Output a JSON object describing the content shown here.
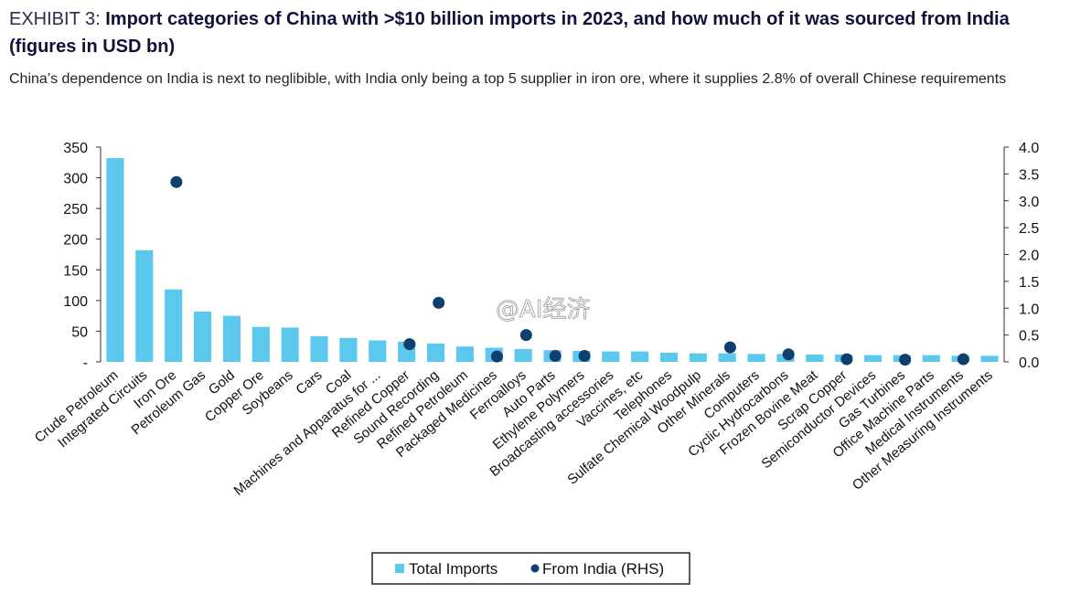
{
  "header": {
    "exhibit_label": "EXHIBIT 3:",
    "title": "Import categories of China with >$10 billion imports in 2023, and how much of it was sourced from India (figures in USD bn)",
    "subtitle": "China’s dependence on India is next to neglibible, with India only being a top 5 supplier in iron ore, where it supplies 2.8% of overall Chinese requirements"
  },
  "watermark": "@AI经济",
  "colors": {
    "bar": "#5bc8ec",
    "dot": "#0f3f6e",
    "axis": "#333333"
  },
  "chart_data": {
    "type": "bar",
    "title": "Import categories of China with >$10 billion imports in 2023, and how much of it was sourced from India (figures in USD bn)",
    "categories": [
      "Crude Petroleum",
      "Integrated Circuits",
      "Iron Ore",
      "Petroleum Gas",
      "Gold",
      "Copper Ore",
      "Soybeans",
      "Cars",
      "Coal",
      "Machines and Apparatus for ...",
      "Refined Copper",
      "Sound Recording",
      "Refined Petroleum",
      "Packaged Medicines",
      "Ferroalloys",
      "Auto Parts",
      "Ethylene Polymers",
      "Broadcasting accessories",
      "Vaccines, etc",
      "Telephones",
      "Sulfate Chemical Woodpulp",
      "Other Minerals",
      "Computers",
      "Cyclic Hydrocarbons",
      "Frozen Bovine Meat",
      "Scrap Copper",
      "Semiconductor Devices",
      "Gas Turbines",
      "Office Machine Parts",
      "Medical Instruments",
      "Other Measuring Instruments"
    ],
    "series": [
      {
        "name": "Total Imports",
        "type": "bar",
        "axis": "left",
        "values": [
          332,
          182,
          118,
          82,
          75,
          57,
          56,
          42,
          39,
          35,
          33,
          30,
          25,
          23,
          21,
          19,
          18,
          17,
          17,
          15,
          14,
          14,
          13,
          13,
          12,
          12,
          11,
          11,
          11,
          10,
          10
        ]
      },
      {
        "name": "From India (RHS)",
        "type": "scatter",
        "axis": "right",
        "points": [
          {
            "category": "Iron Ore",
            "value": 3.35
          },
          {
            "category": "Sound Recording",
            "value": 1.1
          },
          {
            "category": "Refined Copper",
            "value": 0.33
          },
          {
            "category": "Packaged Medicines",
            "value": 0.1
          },
          {
            "category": "Ferroalloys",
            "value": 0.5
          },
          {
            "category": "Auto Parts",
            "value": 0.11
          },
          {
            "category": "Ethylene Polymers",
            "value": 0.11
          },
          {
            "category": "Other Minerals",
            "value": 0.27
          },
          {
            "category": "Cyclic Hydrocarbons",
            "value": 0.14
          },
          {
            "category": "Scrap Copper",
            "value": 0.05
          },
          {
            "category": "Gas Turbines",
            "value": 0.04
          },
          {
            "category": "Medical Instruments",
            "value": 0.05
          }
        ]
      }
    ],
    "y_left": {
      "ylim": [
        0,
        350
      ],
      "ticks": [
        "-",
        "50",
        "100",
        "150",
        "200",
        "250",
        "300",
        "350"
      ],
      "tick_values": [
        0,
        50,
        100,
        150,
        200,
        250,
        300,
        350
      ]
    },
    "y_right": {
      "ylim": [
        0,
        4
      ],
      "ticks": [
        "0.0",
        "0.5",
        "1.0",
        "1.5",
        "2.0",
        "2.5",
        "3.0",
        "3.5",
        "4.0"
      ],
      "tick_values": [
        0,
        0.5,
        1,
        1.5,
        2,
        2.5,
        3,
        3.5,
        4
      ]
    },
    "legend": {
      "position": "bottom-center",
      "entries": [
        "Total Imports",
        "From India (RHS)"
      ]
    },
    "grid": false
  }
}
